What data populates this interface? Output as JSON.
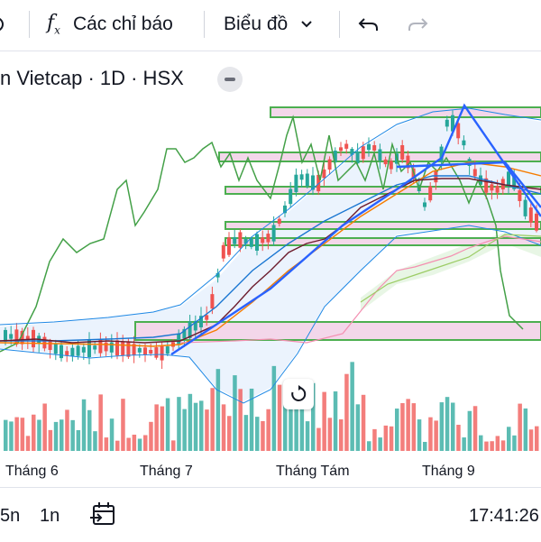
{
  "toolbar": {
    "indicators_icon": "function-fx-icon",
    "indicators_label": "Các chỉ báo",
    "chart_label": "Biểu đồ",
    "undo_icon": "undo-arrow-icon",
    "redo_icon": "redo-arrow-icon"
  },
  "symbol": {
    "title": "n Vietcap · 1D · HSX"
  },
  "xaxis": {
    "labels": [
      "Tháng 6",
      "Tháng 7",
      "Tháng Tám",
      "Tháng 9"
    ]
  },
  "bottombar": {
    "interval_a": "5n",
    "interval_b": "1n",
    "date_range_icon": "calendar-range-icon",
    "time": "17:41:26"
  },
  "colors": {
    "up": "#26a69a",
    "down": "#ef5350",
    "zone_border": "#4caf50",
    "zone_fill": "#f3d7ea",
    "trend_line": "#2962ff"
  }
}
